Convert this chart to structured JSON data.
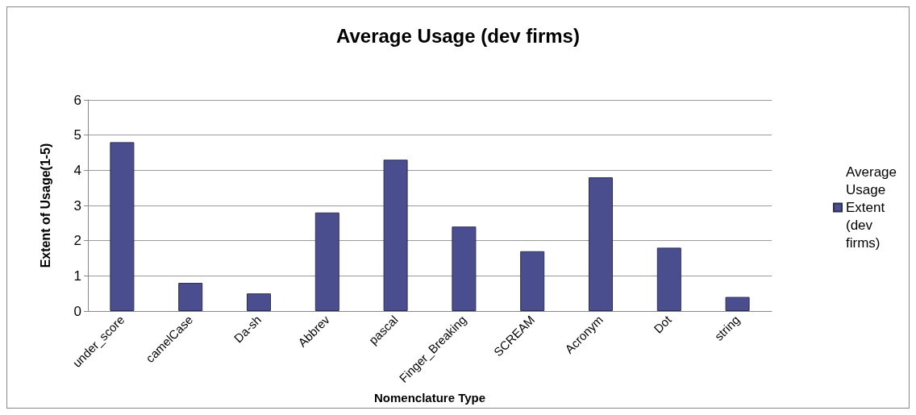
{
  "chart_data": {
    "type": "bar",
    "title": "Average Usage (dev firms)",
    "xlabel": "Nomenclature Type",
    "ylabel": "Extent of Usage(1-5)",
    "categories": [
      "under_score",
      "camelCase",
      "Da-sh",
      "Abbrev",
      "pascal",
      "Finger_Breaking",
      "SCREAM",
      "Acronym",
      "Dot",
      "string"
    ],
    "series": [
      {
        "name": "Average Usage Extent (dev firms)",
        "color": "#4a4e8e",
        "values": [
          4.8,
          0.8,
          0.5,
          2.8,
          4.3,
          2.4,
          1.7,
          3.8,
          1.8,
          0.4
        ]
      }
    ],
    "ylim": [
      0,
      6
    ],
    "yticks": [
      0,
      1,
      2,
      3,
      4,
      5,
      6
    ],
    "grid": "y",
    "legend": "right"
  }
}
